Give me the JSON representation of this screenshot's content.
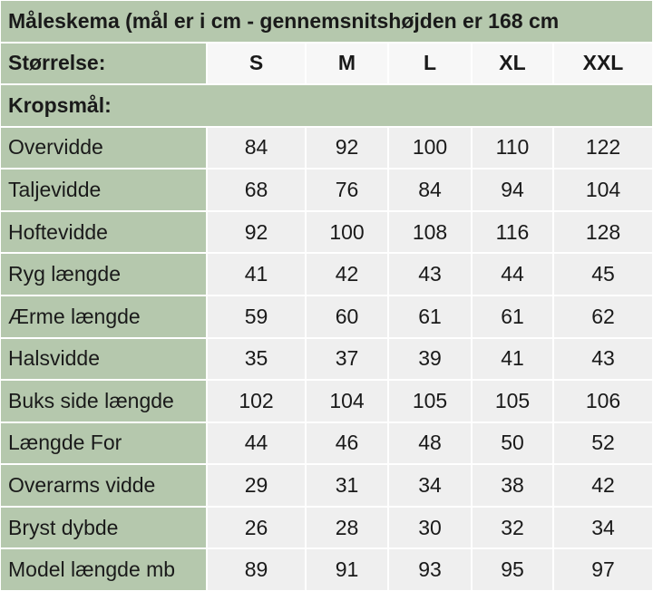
{
  "title": "Måleskema (mål er i cm - gennemsnitshøjden er 168 cm",
  "header": {
    "label": "Størrelse:",
    "sizes": [
      "S",
      "M",
      "L",
      "XL",
      "XXL"
    ]
  },
  "section": "Kropsmål:",
  "rows": [
    {
      "label": "Overvidde",
      "values": [
        84,
        92,
        100,
        110,
        122
      ]
    },
    {
      "label": "Taljevidde",
      "values": [
        68,
        76,
        84,
        94,
        104
      ]
    },
    {
      "label": "Hoftevidde",
      "values": [
        92,
        100,
        108,
        116,
        128
      ]
    },
    {
      "label": "Ryg længde",
      "values": [
        41,
        42,
        43,
        44,
        45
      ]
    },
    {
      "label": "Ærme længde",
      "values": [
        59,
        60,
        61,
        61,
        62
      ]
    },
    {
      "label": "Halsvidde",
      "values": [
        35,
        37,
        39,
        41,
        43
      ]
    },
    {
      "label": "Buks side længde",
      "values": [
        102,
        104,
        105,
        105,
        106
      ]
    },
    {
      "label": "Længde For",
      "values": [
        44,
        46,
        48,
        50,
        52
      ]
    },
    {
      "label": "Overarms vidde",
      "values": [
        29,
        31,
        34,
        38,
        42
      ]
    },
    {
      "label": "Bryst dybde",
      "values": [
        26,
        28,
        30,
        32,
        34
      ]
    },
    {
      "label": "Model længde mb",
      "values": [
        89,
        91,
        93,
        95,
        97
      ]
    }
  ]
}
